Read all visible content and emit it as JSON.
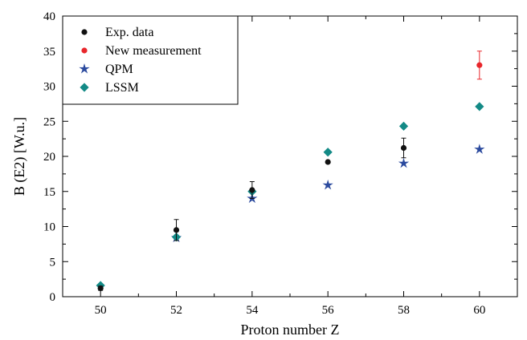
{
  "chart_data": {
    "type": "scatter",
    "xlabel": "Proton number  Z",
    "ylabel": "B (E2) [W.u.]",
    "xlim": [
      49,
      61
    ],
    "ylim": [
      0,
      40
    ],
    "x_ticks": [
      50,
      52,
      54,
      56,
      58,
      60
    ],
    "y_ticks": [
      0,
      5,
      10,
      15,
      20,
      25,
      30,
      35,
      40
    ],
    "grid": false,
    "legend_position": "top-left",
    "series": [
      {
        "name": "Exp. data",
        "marker": "circle",
        "color": "#111111",
        "points": [
          {
            "x": 50,
            "y": 1.2,
            "err": 0.3
          },
          {
            "x": 52,
            "y": 9.5,
            "err": 1.5
          },
          {
            "x": 54,
            "y": 15.2,
            "err": 1.2
          },
          {
            "x": 56,
            "y": 19.2,
            "err": 0
          },
          {
            "x": 58,
            "y": 21.2,
            "err": 1.4
          }
        ]
      },
      {
        "name": "New measurement",
        "marker": "circle",
        "color": "#e8262b",
        "points": [
          {
            "x": 60,
            "y": 33.0,
            "err": 2.0
          }
        ]
      },
      {
        "name": "QPM",
        "marker": "star",
        "color": "#2b4a9e",
        "points": [
          {
            "x": 52,
            "y": 8.4
          },
          {
            "x": 54,
            "y": 14.0
          },
          {
            "x": 56,
            "y": 15.9
          },
          {
            "x": 58,
            "y": 19.0
          },
          {
            "x": 60,
            "y": 21.0
          }
        ]
      },
      {
        "name": "LSSM",
        "marker": "diamond",
        "color": "#138a86",
        "points": [
          {
            "x": 50,
            "y": 1.6
          },
          {
            "x": 52,
            "y": 8.5
          },
          {
            "x": 54,
            "y": 15.0
          },
          {
            "x": 56,
            "y": 20.6
          },
          {
            "x": 58,
            "y": 24.3
          },
          {
            "x": 60,
            "y": 27.1
          }
        ]
      }
    ]
  }
}
